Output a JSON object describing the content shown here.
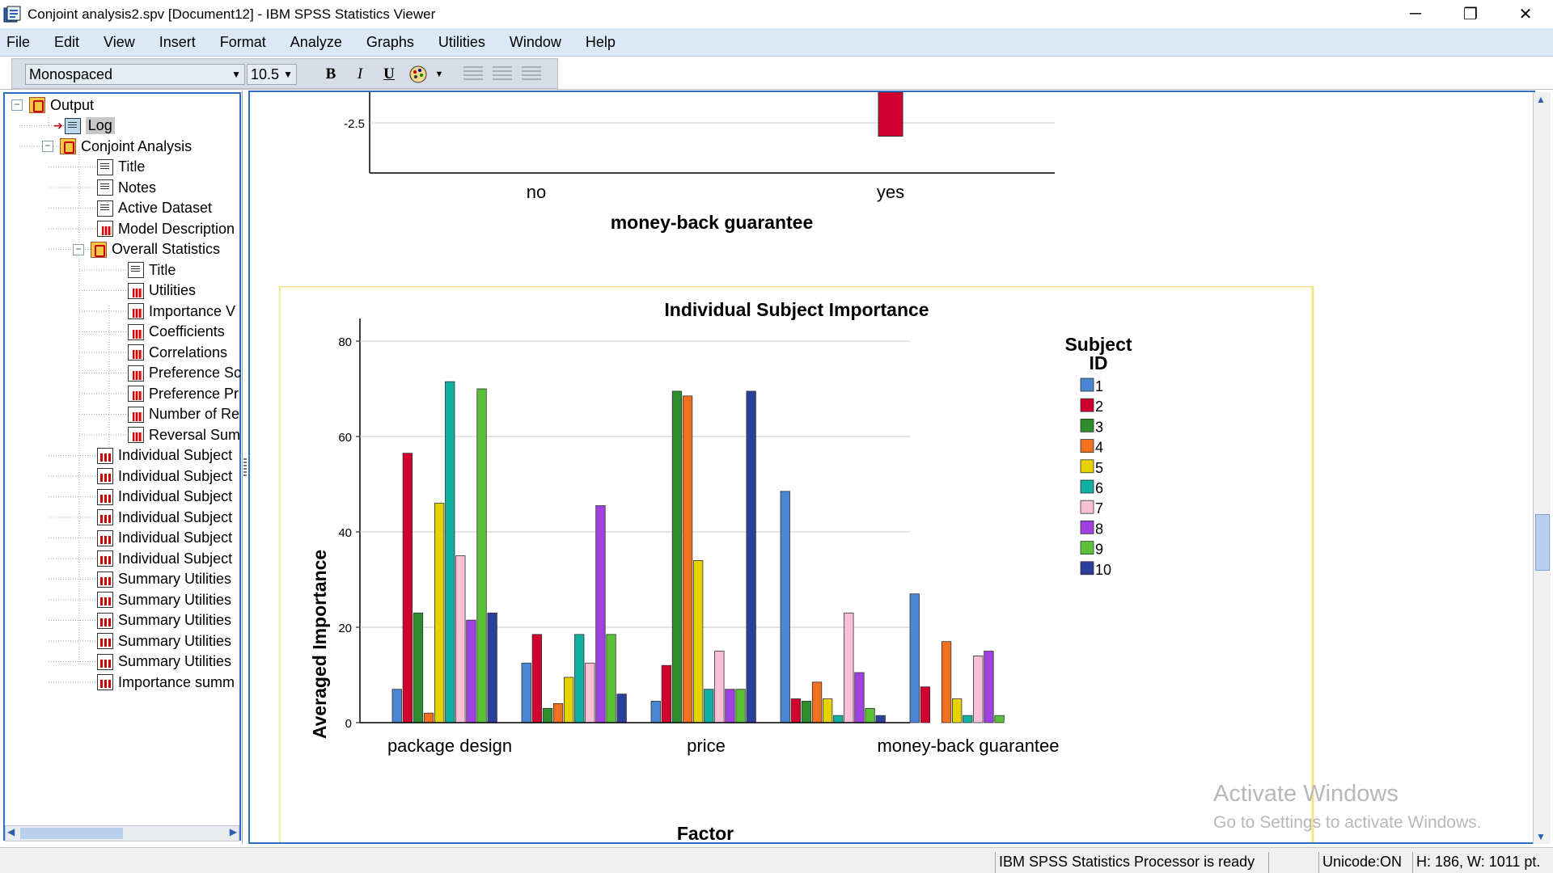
{
  "window": {
    "title": "Conjoint analysis2.spv [Document12] - IBM SPSS Statistics Viewer",
    "minimize": "─",
    "restore": "❐",
    "close": "✕"
  },
  "menu": [
    "File",
    "Edit",
    "View",
    "Insert",
    "Format",
    "Analyze",
    "Graphs",
    "Utilities",
    "Window",
    "Help"
  ],
  "toolbar": {
    "font_value": "Monospaced",
    "size_value": "10.5",
    "bold": "B",
    "italic": "I",
    "underline": "U"
  },
  "tree": [
    {
      "label": "Output",
      "icon": "book-icon",
      "level": 0,
      "expander": "⊟"
    },
    {
      "label": "Log",
      "icon": "log-icon",
      "level": 1,
      "selected": true
    },
    {
      "label": "Conjoint Analysis",
      "icon": "book-icon",
      "level": 1,
      "expander": "⊟"
    },
    {
      "label": "Title",
      "icon": "doc-icon",
      "level": 2
    },
    {
      "label": "Notes",
      "icon": "doc-icon",
      "level": 2
    },
    {
      "label": "Active Dataset",
      "icon": "doc-icon",
      "level": 2
    },
    {
      "label": "Model Description",
      "icon": "table-icon",
      "level": 2
    },
    {
      "label": "Overall Statistics",
      "icon": "book-icon",
      "level": 2,
      "expander": "⊟"
    },
    {
      "label": "Title",
      "icon": "doc-icon",
      "level": 3
    },
    {
      "label": "Utilities",
      "icon": "table-icon",
      "level": 3
    },
    {
      "label": "Importance V",
      "icon": "table-icon",
      "level": 3
    },
    {
      "label": "Coefficients",
      "icon": "table-icon",
      "level": 3
    },
    {
      "label": "Correlations",
      "icon": "table-icon",
      "level": 3
    },
    {
      "label": "Preference Sc",
      "icon": "table-icon",
      "level": 3
    },
    {
      "label": "Preference Pr",
      "icon": "table-icon",
      "level": 3
    },
    {
      "label": "Number of Re",
      "icon": "table-icon",
      "level": 3
    },
    {
      "label": "Reversal Sum",
      "icon": "table-icon",
      "level": 3
    },
    {
      "label": "Individual Subject",
      "icon": "chart-icon",
      "level": 2
    },
    {
      "label": "Individual Subject",
      "icon": "chart-icon",
      "level": 2
    },
    {
      "label": "Individual Subject",
      "icon": "chart-icon",
      "level": 2
    },
    {
      "label": "Individual Subject",
      "icon": "chart-icon",
      "level": 2
    },
    {
      "label": "Individual Subject",
      "icon": "chart-icon",
      "level": 2
    },
    {
      "label": "Individual Subject",
      "icon": "chart-icon",
      "level": 2
    },
    {
      "label": "Summary Utilities",
      "icon": "chart-icon",
      "level": 2
    },
    {
      "label": "Summary Utilities",
      "icon": "chart-icon",
      "level": 2
    },
    {
      "label": "Summary Utilities",
      "icon": "chart-icon",
      "level": 2
    },
    {
      "label": "Summary Utilities",
      "icon": "chart-icon",
      "level": 2
    },
    {
      "label": "Summary Utilities",
      "icon": "chart-icon",
      "level": 2
    },
    {
      "label": "Importance summ",
      "icon": "chart-icon",
      "level": 2
    }
  ],
  "status": {
    "processor": "IBM SPSS Statistics Processor is ready",
    "unicode": "Unicode:ON",
    "dims": "H: 186, W: 1011 pt."
  },
  "watermark": {
    "line1": "Activate Windows",
    "line2": "Go to Settings to activate Windows."
  },
  "chart_data": [
    {
      "type": "bar",
      "partial": true,
      "categories": [
        "no",
        "yes"
      ],
      "values": [
        null,
        -2.8
      ],
      "xlabel": "money-back guarantee",
      "ylabel": "",
      "visible_ticks": [
        -2.5
      ],
      "color": "#d2002e"
    },
    {
      "type": "bar",
      "title": "Individual Subject Importance",
      "xlabel": "Factor",
      "ylabel": "Averaged Importance",
      "ylim": [
        0,
        80
      ],
      "yticks": [
        0,
        20,
        40,
        60,
        80
      ],
      "grid": true,
      "legend_title": "Subject ID",
      "legend_position": "right",
      "x_axis_labels": [
        "package design",
        "price",
        "money-back guarantee"
      ],
      "groups": [
        {
          "values": [
            7,
            56.5,
            23,
            2,
            46,
            71.5,
            35,
            21.5,
            70,
            23
          ]
        },
        {
          "values": [
            12.5,
            18.5,
            3,
            4,
            9.5,
            18.5,
            12.5,
            45.5,
            18.5,
            6
          ]
        },
        {
          "values": [
            4.5,
            12,
            69.5,
            68.5,
            34,
            7,
            15,
            7,
            7,
            69.5
          ]
        },
        {
          "values": [
            48.5,
            5,
            4.5,
            8.5,
            5,
            1.5,
            23,
            10.5,
            3,
            1.5
          ]
        },
        {
          "values": [
            27,
            7.5,
            0,
            17,
            5,
            1.5,
            14,
            15,
            1.5,
            0
          ]
        }
      ],
      "series": [
        {
          "name": "1",
          "color": "#4a86d4"
        },
        {
          "name": "2",
          "color": "#d2002e"
        },
        {
          "name": "3",
          "color": "#2e8b2e"
        },
        {
          "name": "4",
          "color": "#f07020"
        },
        {
          "name": "5",
          "color": "#e6d200"
        },
        {
          "name": "6",
          "color": "#12b0a0"
        },
        {
          "name": "7",
          "color": "#f8c0d8"
        },
        {
          "name": "8",
          "color": "#a040e0"
        },
        {
          "name": "9",
          "color": "#5cbf3a"
        },
        {
          "name": "10",
          "color": "#2c3f9a"
        }
      ]
    }
  ]
}
